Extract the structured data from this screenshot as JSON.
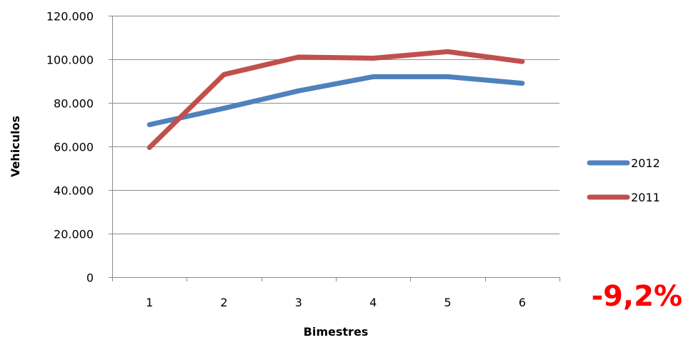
{
  "chart_data": {
    "type": "line",
    "title": "",
    "xlabel": "Bimestres",
    "ylabel": "Vehiculos",
    "categories": [
      "1",
      "2",
      "3",
      "4",
      "5",
      "6"
    ],
    "ylim": [
      0,
      120000
    ],
    "yticks": [
      0,
      20000,
      40000,
      60000,
      80000,
      100000,
      120000
    ],
    "ytick_labels": [
      "0",
      "20.000",
      "40.000",
      "60.000",
      "80.000",
      "100.000",
      "120.000"
    ],
    "grid": true,
    "legend_position": "right",
    "series": [
      {
        "name": "2012",
        "color": "#4f81bd",
        "values": [
          70000,
          77500,
          85500,
          92000,
          92000,
          89000
        ]
      },
      {
        "name": "2011",
        "color": "#c0504d",
        "values": [
          59500,
          93000,
          101000,
          100500,
          103500,
          99000
        ]
      }
    ],
    "annotation": {
      "text": "-9,2%",
      "color": "#ff0000"
    }
  }
}
